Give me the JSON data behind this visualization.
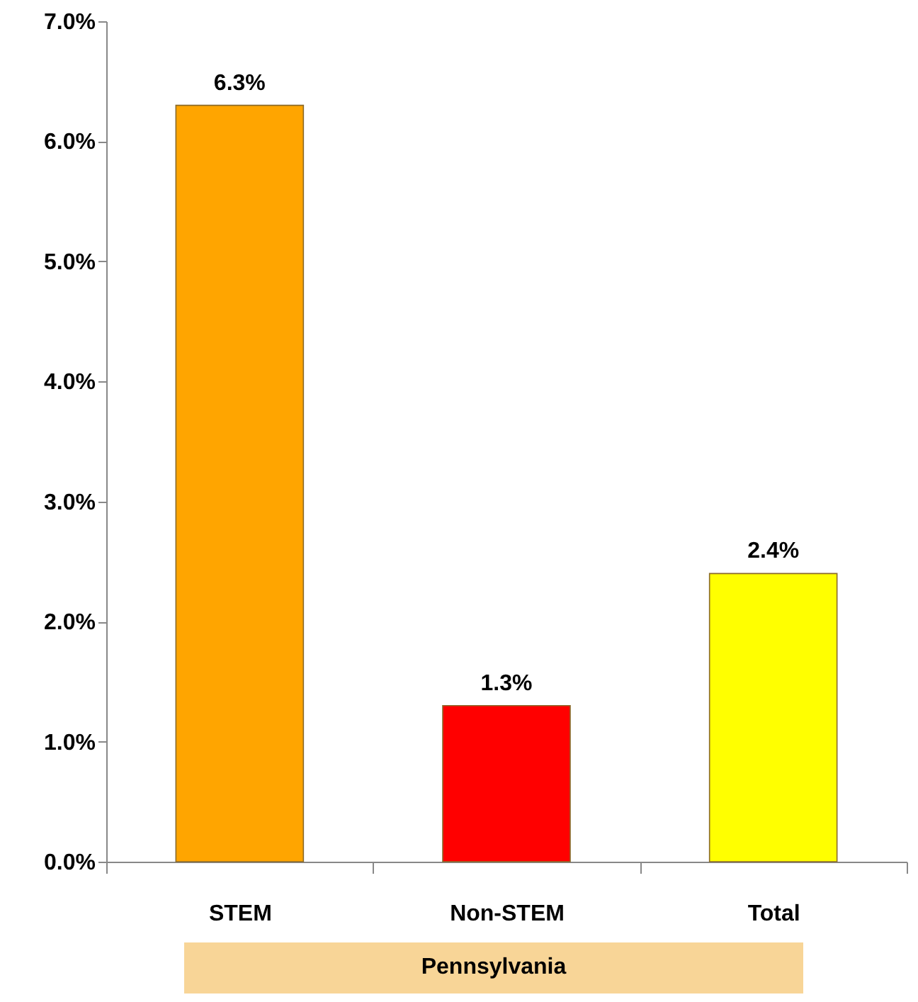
{
  "chart_data": {
    "type": "bar",
    "xlabel": "Pennsylvania",
    "categories": [
      "STEM",
      "Non-STEM",
      "Total"
    ],
    "values": [
      6.3,
      1.3,
      2.4
    ],
    "colors": [
      "#ffa500",
      "#ff0000",
      "#ffff00"
    ],
    "value_labels": [
      "6.3%",
      "1.3%",
      "2.4%"
    ],
    "ylim": [
      0,
      7
    ],
    "yticks": [
      {
        "value": 0,
        "label": "0.0%"
      },
      {
        "value": 1,
        "label": "1.0%"
      },
      {
        "value": 2,
        "label": "2.0%"
      },
      {
        "value": 3,
        "label": "3.0%"
      },
      {
        "value": 4,
        "label": "4.0%"
      },
      {
        "value": 5,
        "label": "5.0%"
      },
      {
        "value": 6,
        "label": "6.0%"
      },
      {
        "value": 7,
        "label": "7.0%"
      }
    ],
    "grid": false
  }
}
